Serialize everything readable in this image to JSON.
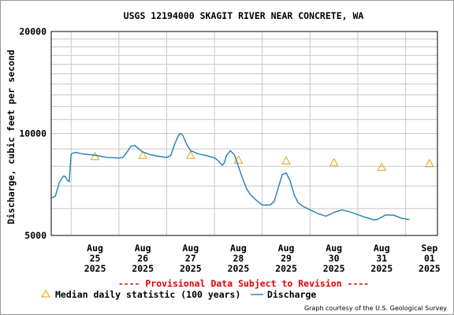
{
  "colors": {
    "discharge": "#1e7fb8",
    "median_marker": "#e8a100",
    "provisional_text": "#e00000",
    "grid": "#c8c8c8",
    "axis": "#000000",
    "text": "#000000"
  },
  "footer": {
    "provisional": "---- Provisional Data Subject to Revision ----",
    "credit": "Graph courtesy of the U.S. Geological Survey"
  },
  "chart_data": {
    "type": "line",
    "title": "USGS 12194000 SKAGIT RIVER NEAR CONCRETE, WA",
    "ylabel": "Discharge, cubic feet per second",
    "xlabel": "",
    "ylim": [
      5000,
      20000
    ],
    "y_scale": "log",
    "y_ticks": [
      {
        "value": 5000,
        "label": "5000"
      },
      {
        "value": 10000,
        "label": "10000"
      },
      {
        "value": 20000,
        "label": "20000"
      }
    ],
    "y_minor_grid": [
      6000,
      7000,
      8000,
      9000,
      11000,
      12000,
      13000,
      14000,
      15000,
      16000,
      17000,
      18000,
      19000
    ],
    "xlim": [
      "2025-08-24T14:00",
      "2025-09-01T16:00"
    ],
    "x_ticks": [
      {
        "date": "2025-08-25T12:00",
        "month": "Aug",
        "day": "25",
        "year": "2025"
      },
      {
        "date": "2025-08-26T12:00",
        "month": "Aug",
        "day": "26",
        "year": "2025"
      },
      {
        "date": "2025-08-27T12:00",
        "month": "Aug",
        "day": "27",
        "year": "2025"
      },
      {
        "date": "2025-08-28T12:00",
        "month": "Aug",
        "day": "28",
        "year": "2025"
      },
      {
        "date": "2025-08-29T12:00",
        "month": "Aug",
        "day": "29",
        "year": "2025"
      },
      {
        "date": "2025-08-30T12:00",
        "month": "Aug",
        "day": "30",
        "year": "2025"
      },
      {
        "date": "2025-08-31T12:00",
        "month": "Aug",
        "day": "31",
        "year": "2025"
      },
      {
        "date": "2025-09-01T12:00",
        "month": "Sep",
        "day": "01",
        "year": "2025"
      }
    ],
    "x_gridlines": [
      "2025-08-25T00:00",
      "2025-08-26T00:00",
      "2025-08-27T00:00",
      "2025-08-28T00:00",
      "2025-08-29T00:00",
      "2025-08-30T00:00",
      "2025-08-31T00:00",
      "2025-09-01T00:00"
    ],
    "grid": true,
    "legend_position": "bottom-left",
    "series": [
      {
        "name": "Median daily statistic (100 years)",
        "kind": "marker-triangle",
        "points": [
          {
            "x": "2025-08-25T12:00",
            "y": 8550
          },
          {
            "x": "2025-08-26T12:00",
            "y": 8620
          },
          {
            "x": "2025-08-27T12:00",
            "y": 8620
          },
          {
            "x": "2025-08-28T12:00",
            "y": 8350
          },
          {
            "x": "2025-08-29T12:00",
            "y": 8300
          },
          {
            "x": "2025-08-30T12:00",
            "y": 8200
          },
          {
            "x": "2025-08-31T12:00",
            "y": 7950
          },
          {
            "x": "2025-09-01T12:00",
            "y": 8150
          }
        ]
      },
      {
        "name": "Discharge",
        "kind": "line",
        "points": [
          {
            "x": "2025-08-24T14:00",
            "y": 6450
          },
          {
            "x": "2025-08-24T16:00",
            "y": 6520
          },
          {
            "x": "2025-08-24T18:00",
            "y": 7150
          },
          {
            "x": "2025-08-24T20:00",
            "y": 7480
          },
          {
            "x": "2025-08-24T21:00",
            "y": 7470
          },
          {
            "x": "2025-08-24T22:00",
            "y": 7300
          },
          {
            "x": "2025-08-24T23:00",
            "y": 7200
          },
          {
            "x": "2025-08-25T00:00",
            "y": 8700
          },
          {
            "x": "2025-08-25T02:00",
            "y": 8800
          },
          {
            "x": "2025-08-25T06:00",
            "y": 8700
          },
          {
            "x": "2025-08-25T12:00",
            "y": 8620
          },
          {
            "x": "2025-08-25T18:00",
            "y": 8500
          },
          {
            "x": "2025-08-26T00:00",
            "y": 8460
          },
          {
            "x": "2025-08-26T02:00",
            "y": 8500
          },
          {
            "x": "2025-08-26T04:00",
            "y": 8800
          },
          {
            "x": "2025-08-26T06:00",
            "y": 9170
          },
          {
            "x": "2025-08-26T08:00",
            "y": 9220
          },
          {
            "x": "2025-08-26T10:00",
            "y": 9000
          },
          {
            "x": "2025-08-26T12:00",
            "y": 8820
          },
          {
            "x": "2025-08-26T16:00",
            "y": 8650
          },
          {
            "x": "2025-08-26T20:00",
            "y": 8560
          },
          {
            "x": "2025-08-27T00:00",
            "y": 8500
          },
          {
            "x": "2025-08-27T02:00",
            "y": 8600
          },
          {
            "x": "2025-08-27T04:00",
            "y": 9300
          },
          {
            "x": "2025-08-27T06:00",
            "y": 9900
          },
          {
            "x": "2025-08-27T07:00",
            "y": 10000
          },
          {
            "x": "2025-08-27T08:00",
            "y": 9900
          },
          {
            "x": "2025-08-27T10:00",
            "y": 9300
          },
          {
            "x": "2025-08-27T12:00",
            "y": 8900
          },
          {
            "x": "2025-08-27T16:00",
            "y": 8700
          },
          {
            "x": "2025-08-27T20:00",
            "y": 8600
          },
          {
            "x": "2025-08-28T00:00",
            "y": 8480
          },
          {
            "x": "2025-08-28T02:00",
            "y": 8300
          },
          {
            "x": "2025-08-28T04:00",
            "y": 8050
          },
          {
            "x": "2025-08-28T05:00",
            "y": 8200
          },
          {
            "x": "2025-08-28T06:00",
            "y": 8600
          },
          {
            "x": "2025-08-28T08:00",
            "y": 8900
          },
          {
            "x": "2025-08-28T10:00",
            "y": 8650
          },
          {
            "x": "2025-08-28T12:00",
            "y": 8000
          },
          {
            "x": "2025-08-28T14:00",
            "y": 7400
          },
          {
            "x": "2025-08-28T16:00",
            "y": 6900
          },
          {
            "x": "2025-08-28T18:00",
            "y": 6600
          },
          {
            "x": "2025-08-28T21:00",
            "y": 6350
          },
          {
            "x": "2025-08-29T00:00",
            "y": 6150
          },
          {
            "x": "2025-08-29T04:00",
            "y": 6150
          },
          {
            "x": "2025-08-29T06:00",
            "y": 6300
          },
          {
            "x": "2025-08-29T08:00",
            "y": 6900
          },
          {
            "x": "2025-08-29T10:00",
            "y": 7550
          },
          {
            "x": "2025-08-29T12:00",
            "y": 7650
          },
          {
            "x": "2025-08-29T14:00",
            "y": 7250
          },
          {
            "x": "2025-08-29T16:00",
            "y": 6600
          },
          {
            "x": "2025-08-29T18:00",
            "y": 6250
          },
          {
            "x": "2025-08-29T20:00",
            "y": 6120
          },
          {
            "x": "2025-08-30T00:00",
            "y": 5950
          },
          {
            "x": "2025-08-30T04:00",
            "y": 5800
          },
          {
            "x": "2025-08-30T08:00",
            "y": 5700
          },
          {
            "x": "2025-08-30T12:00",
            "y": 5850
          },
          {
            "x": "2025-08-30T16:00",
            "y": 5950
          },
          {
            "x": "2025-08-30T20:00",
            "y": 5870
          },
          {
            "x": "2025-08-31T00:00",
            "y": 5760
          },
          {
            "x": "2025-08-31T04:00",
            "y": 5650
          },
          {
            "x": "2025-08-31T08:00",
            "y": 5560
          },
          {
            "x": "2025-08-31T10:00",
            "y": 5580
          },
          {
            "x": "2025-08-31T14:00",
            "y": 5750
          },
          {
            "x": "2025-08-31T18:00",
            "y": 5740
          },
          {
            "x": "2025-08-31T22:00",
            "y": 5620
          },
          {
            "x": "2025-09-01T02:00",
            "y": 5570
          }
        ]
      }
    ]
  }
}
